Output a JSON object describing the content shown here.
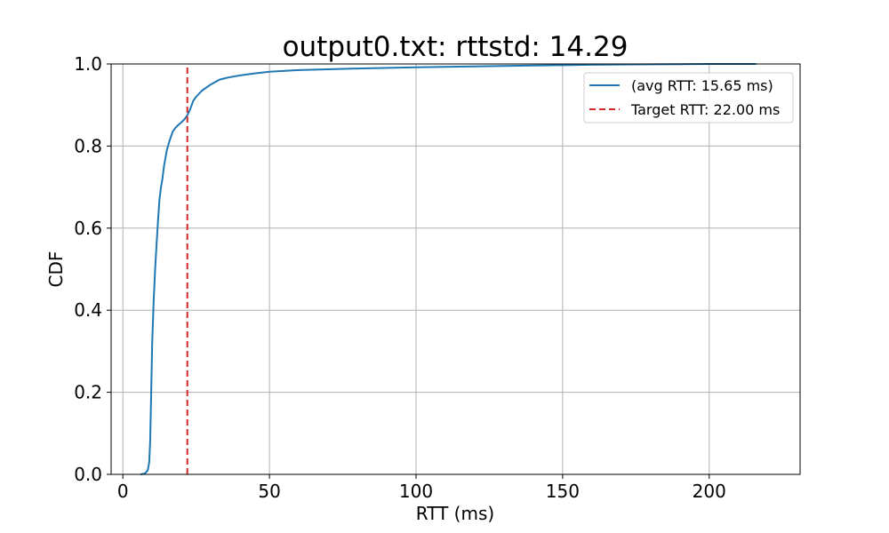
{
  "chart_data": {
    "type": "line",
    "title": "output0.txt: rttstd: 14.29",
    "xlabel": "RTT (ms)",
    "ylabel": "CDF",
    "xlim": [
      -4,
      231
    ],
    "ylim": [
      0,
      1
    ],
    "x_ticks": [
      0,
      50,
      100,
      150,
      200
    ],
    "y_ticks": [
      0.0,
      0.2,
      0.4,
      0.6,
      0.8,
      1.0
    ],
    "x_tick_labels": [
      "0",
      "50",
      "100",
      "150",
      "200"
    ],
    "y_tick_labels": [
      "0.0",
      "0.2",
      "0.4",
      "0.6",
      "0.8",
      "1.0"
    ],
    "grid": true,
    "legend_position": "top-right",
    "series": [
      {
        "name": " (avg RTT: 15.65 ms)",
        "color": "#1f77b4",
        "style": "solid",
        "x": [
          6,
          7.5,
          8.5,
          9,
          9.3,
          9.6,
          10,
          10.5,
          11,
          11.5,
          12,
          12.5,
          13,
          13.5,
          14,
          15,
          16,
          17,
          18,
          19,
          20,
          21,
          22,
          23,
          24,
          25,
          27,
          30,
          33,
          36,
          40,
          45,
          50,
          60,
          70,
          80,
          100,
          120,
          140,
          150,
          160,
          175,
          190,
          200,
          210,
          216
        ],
        "y": [
          0.0,
          0.002,
          0.01,
          0.03,
          0.08,
          0.18,
          0.32,
          0.42,
          0.5,
          0.56,
          0.62,
          0.67,
          0.7,
          0.72,
          0.75,
          0.79,
          0.815,
          0.835,
          0.845,
          0.852,
          0.858,
          0.865,
          0.875,
          0.89,
          0.91,
          0.92,
          0.935,
          0.95,
          0.962,
          0.967,
          0.972,
          0.977,
          0.981,
          0.985,
          0.987,
          0.989,
          0.992,
          0.994,
          0.996,
          0.997,
          0.998,
          0.999,
          0.9995,
          1.0,
          1.0,
          1.0
        ]
      },
      {
        "name": "Target RTT: 22.00 ms",
        "color": "#d62728",
        "style": "dashed",
        "x": [
          22,
          22
        ],
        "y": [
          0,
          1
        ]
      }
    ]
  }
}
